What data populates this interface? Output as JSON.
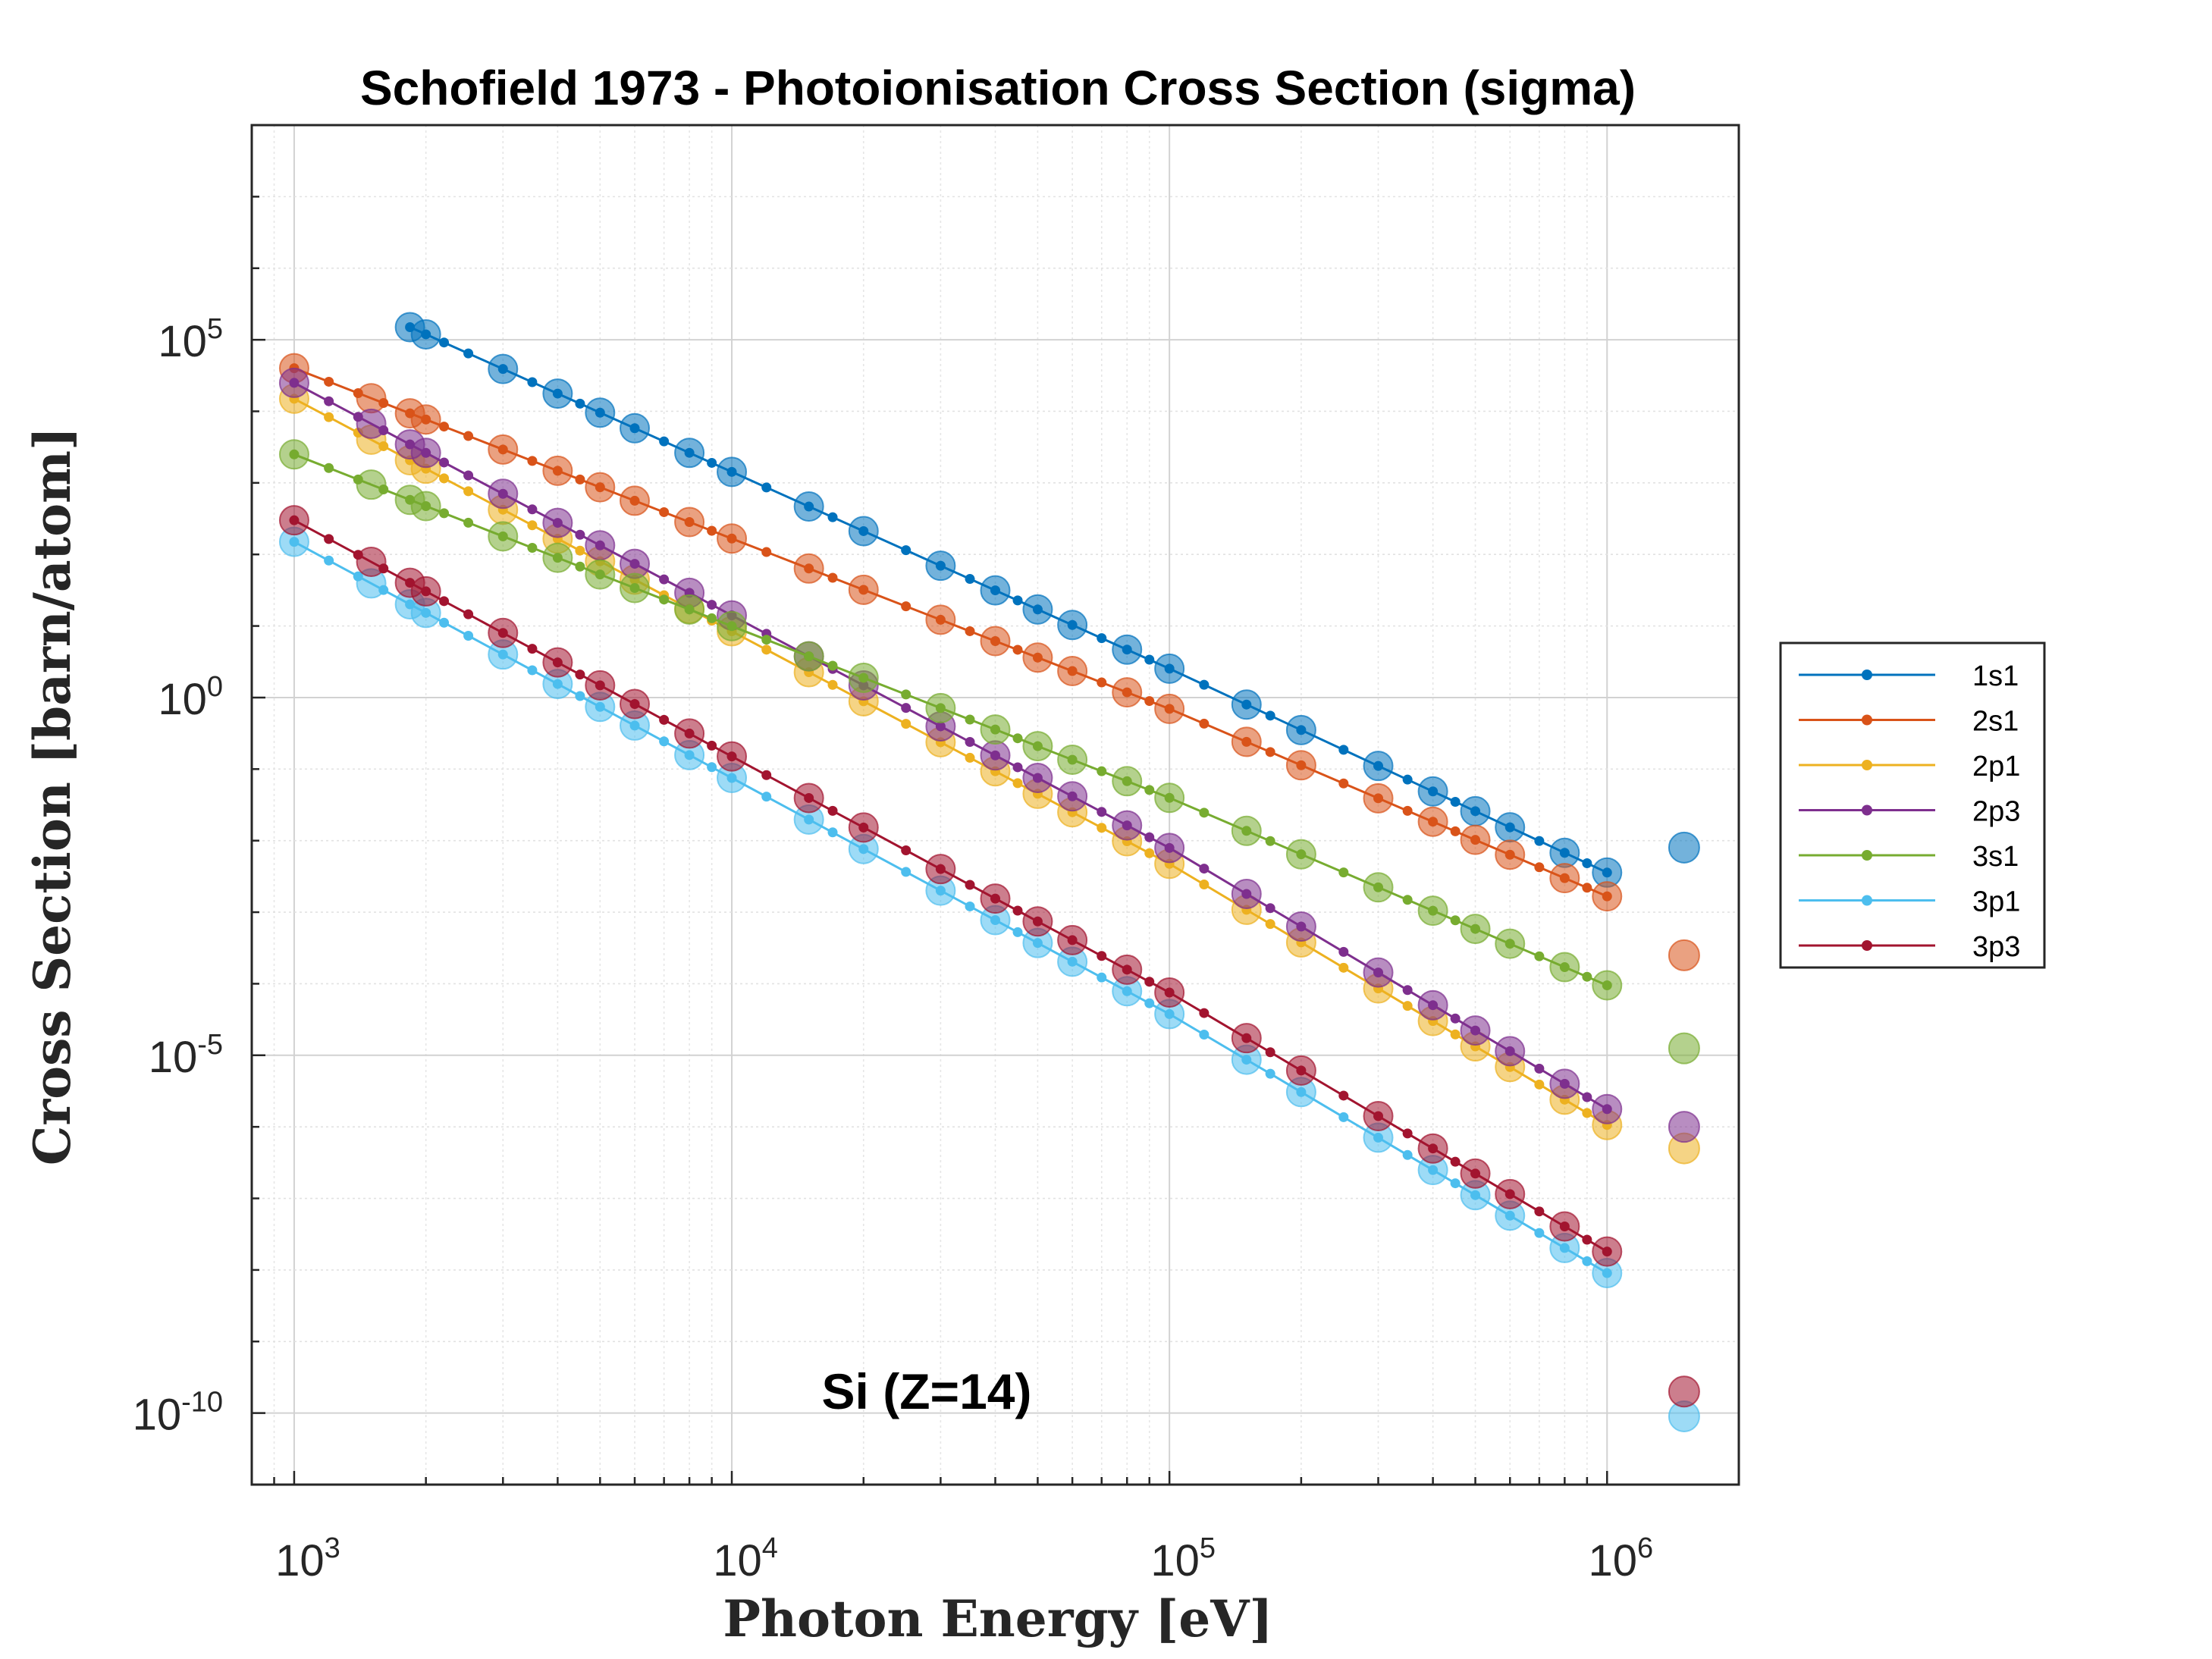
{
  "chart_data": {
    "type": "line",
    "title": "Schofield 1973 - Photoionisation Cross Section (sigma)",
    "xlabel": "Photon Energy [eV]",
    "ylabel": "Cross Section [barn/atom]",
    "xscale": "log",
    "yscale": "log",
    "xlim": [
      800,
      2000000
    ],
    "ylim": [
      1e-11,
      100000000.0
    ],
    "grid": true,
    "legend_position": "outside-right",
    "annotation": "Si (Z=14)",
    "x_ticks": [
      {
        "value": 1000,
        "base": "10",
        "exp": "3"
      },
      {
        "value": 10000,
        "base": "10",
        "exp": "4"
      },
      {
        "value": 100000,
        "base": "10",
        "exp": "5"
      },
      {
        "value": 1000000,
        "base": "10",
        "exp": "6"
      }
    ],
    "y_ticks": [
      {
        "value": 1e-10,
        "base": "10",
        "exp": "-10"
      },
      {
        "value": 1e-05,
        "base": "10",
        "exp": "-5"
      },
      {
        "value": 1,
        "base": "10",
        "exp": "0"
      },
      {
        "value": 100000,
        "base": "10",
        "exp": "5"
      }
    ],
    "marker_x": [
      1000,
      1500,
      1839,
      2000,
      3000,
      4000,
      5000,
      6000,
      8000,
      10000,
      15000,
      20000,
      30000,
      40000,
      50000,
      60000,
      80000,
      100000,
      150000,
      200000,
      300000,
      400000,
      500000,
      600000,
      800000,
      1000000
    ],
    "line_x": [
      1000,
      1200,
      1400,
      1600,
      1839,
      2000,
      2200,
      2500,
      3000,
      3500,
      4000,
      4500,
      5000,
      6000,
      7000,
      8000,
      9000,
      10000,
      12000,
      15000,
      17000,
      20000,
      25000,
      30000,
      35000,
      40000,
      45000,
      50000,
      60000,
      70000,
      80000,
      90000,
      100000,
      120000,
      150000,
      170000,
      200000,
      250000,
      300000,
      350000,
      400000,
      450000,
      500000,
      600000,
      700000,
      800000,
      900000,
      1000000
    ],
    "extra_x": 1500000,
    "series": [
      {
        "name": "1s1",
        "color": "#0072BD",
        "start": 1839,
        "a0": 150000.0,
        "s0": -2.75,
        "s1": -2.85,
        "a_extra": 0.008
      },
      {
        "name": "2s1",
        "color": "#D95319",
        "start": 1000,
        "a0": 40000.0,
        "s0": -2.38,
        "s1": -2.62,
        "a_extra": 0.00025
      },
      {
        "name": "2p1",
        "color": "#EDB120",
        "start": 1000,
        "a0": 15000.0,
        "s0": -3.25,
        "s1": -3.65,
        "a_extra": 5e-07
      },
      {
        "name": "2p3",
        "color": "#7E2F8E",
        "start": 1000,
        "a0": 25000.0,
        "s0": -3.25,
        "s1": -3.65,
        "a_extra": 1e-06
      },
      {
        "name": "3s1",
        "color": "#77AC30",
        "start": 1000,
        "a0": 2500.0,
        "s0": -2.4,
        "s1": -2.62,
        "a_extra": 1.25e-05
      },
      {
        "name": "3p1",
        "color": "#4DBEEE",
        "start": 1000,
        "a0": 150,
        "s0": -3.3,
        "s1": -3.62,
        "a_extra": 9e-11
      },
      {
        "name": "3p3",
        "color": "#A2142F",
        "start": 1000,
        "a0": 300,
        "s0": -3.3,
        "s1": -3.62,
        "a_extra": 2e-10
      }
    ]
  }
}
